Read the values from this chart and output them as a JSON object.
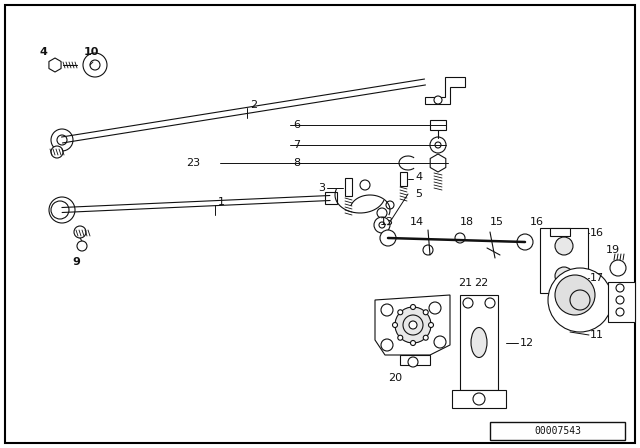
{
  "bg_color": "#ffffff",
  "border_color": "#000000",
  "diagram_id": "00007543",
  "line_color": "#111111"
}
